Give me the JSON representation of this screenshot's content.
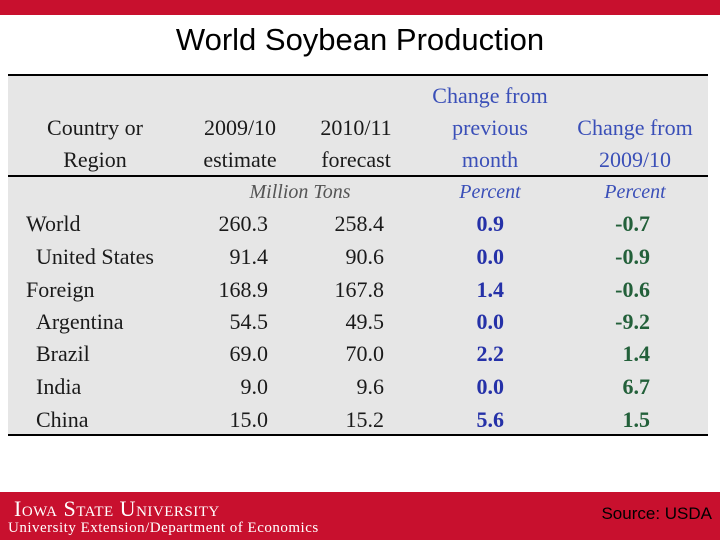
{
  "slide": {
    "title": "World Soybean Production",
    "source": "Source: USDA",
    "logo_text": "Iowa State University",
    "logo_subtitle": "University Extension/Department of Economics"
  },
  "table": {
    "headers": {
      "country_line1": "Country or",
      "country_line2": "Region",
      "col1_line1": "2009/10",
      "col1_line2": "estimate",
      "col2_line1": "2010/11",
      "col2_line2": "forecast",
      "col3_line1": "Change from",
      "col3_line2": "previous",
      "col3_line3": "month",
      "col4_line1": "Change from",
      "col4_line2": "2009/10"
    },
    "units": {
      "million_tons": "Million Tons",
      "percent_a": "Percent",
      "percent_b": "Percent"
    },
    "rows": [
      {
        "region": "World",
        "estimate": "260.3",
        "forecast": "258.4",
        "change_month": "0.9",
        "change_year": "-0.7"
      },
      {
        "region": "United States",
        "estimate": "91.4",
        "forecast": "90.6",
        "change_month": "0.0",
        "change_year": "-0.9"
      },
      {
        "region": "Foreign",
        "estimate": "168.9",
        "forecast": "167.8",
        "change_month": "1.4",
        "change_year": "-0.6"
      },
      {
        "region": "Argentina",
        "estimate": "54.5",
        "forecast": "49.5",
        "change_month": "0.0",
        "change_year": "-9.2"
      },
      {
        "region": "Brazil",
        "estimate": "69.0",
        "forecast": "70.0",
        "change_month": "2.2",
        "change_year": "1.4"
      },
      {
        "region": "India",
        "estimate": "9.0",
        "forecast": "9.6",
        "change_month": "0.0",
        "change_year": "6.7"
      },
      {
        "region": "China",
        "estimate": "15.0",
        "forecast": "15.2",
        "change_month": "5.6",
        "change_year": "1.5"
      }
    ]
  }
}
